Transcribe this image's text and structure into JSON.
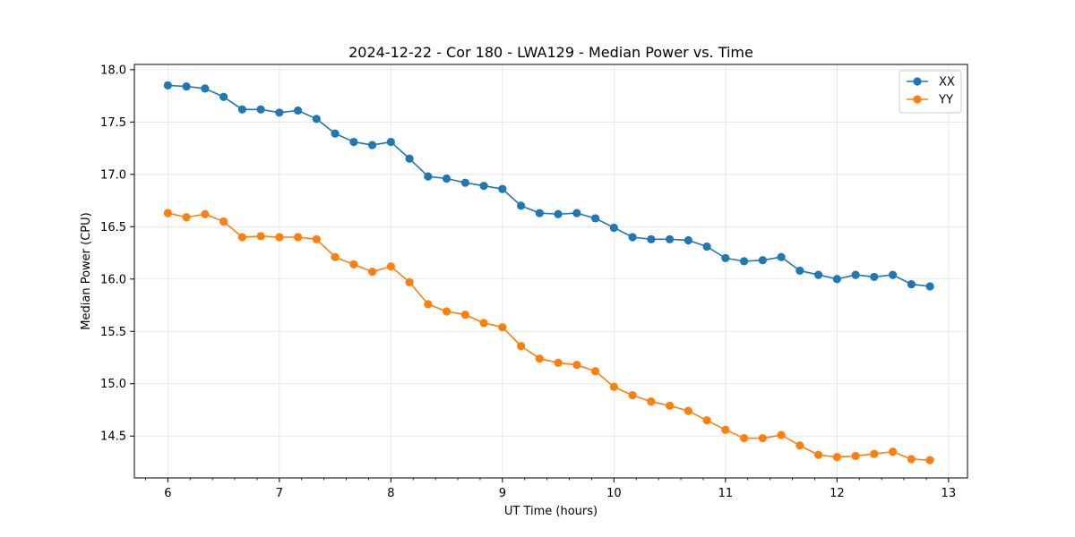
{
  "chart_data": {
    "type": "line",
    "title": "2024-12-22 - Cor 180 - LWA129 - Median Power vs. Time",
    "xlabel": "UT Time (hours)",
    "ylabel": "Median Power (CPU)",
    "xlim": [
      5.7,
      13.17
    ],
    "ylim": [
      14.1,
      18.05
    ],
    "grid": true,
    "legend_position": "top-right",
    "x_ticks": [
      6,
      7,
      8,
      9,
      10,
      11,
      12,
      13
    ],
    "x_tick_labels": [
      "6",
      "7",
      "8",
      "9",
      "10",
      "11",
      "12",
      "13"
    ],
    "y_ticks": [
      14.5,
      15.0,
      15.5,
      16.0,
      16.5,
      17.0,
      17.5,
      18.0
    ],
    "y_tick_labels": [
      "14.5",
      "15.0",
      "15.5",
      "16.0",
      "16.5",
      "17.0",
      "17.5",
      "18.0"
    ],
    "x": [
      6.0,
      6.1667,
      6.3333,
      6.5,
      6.6667,
      6.8333,
      7.0,
      7.1667,
      7.3333,
      7.5,
      7.6667,
      7.8333,
      8.0,
      8.1667,
      8.3333,
      8.5,
      8.6667,
      8.8333,
      9.0,
      9.1667,
      9.3333,
      9.5,
      9.6667,
      9.8333,
      10.0,
      10.1667,
      10.3333,
      10.5,
      10.6667,
      10.8333,
      11.0,
      11.1667,
      11.3333,
      11.5,
      11.6667,
      11.8333,
      12.0,
      12.1667,
      12.3333,
      12.5,
      12.6667,
      12.8333
    ],
    "series": [
      {
        "name": "XX",
        "color": "#1f77b4",
        "values": [
          17.85,
          17.84,
          17.82,
          17.74,
          17.62,
          17.62,
          17.59,
          17.61,
          17.53,
          17.39,
          17.31,
          17.28,
          17.31,
          17.15,
          16.98,
          16.96,
          16.92,
          16.89,
          16.86,
          16.7,
          16.63,
          16.62,
          16.63,
          16.58,
          16.49,
          16.4,
          16.38,
          16.38,
          16.37,
          16.31,
          16.2,
          16.17,
          16.18,
          16.21,
          16.08,
          16.04,
          16.0,
          16.04,
          16.02,
          16.04,
          15.95,
          15.93
        ]
      },
      {
        "name": "YY",
        "color": "#ff7f0e",
        "values": [
          16.63,
          16.59,
          16.62,
          16.55,
          16.4,
          16.41,
          16.4,
          16.4,
          16.38,
          16.21,
          16.14,
          16.07,
          16.12,
          15.97,
          15.76,
          15.69,
          15.66,
          15.58,
          15.54,
          15.36,
          15.24,
          15.2,
          15.18,
          15.12,
          14.97,
          14.89,
          14.83,
          14.79,
          14.74,
          14.65,
          14.56,
          14.48,
          14.48,
          14.51,
          14.41,
          14.32,
          14.3,
          14.31,
          14.33,
          14.35,
          14.28,
          14.27
        ]
      }
    ]
  }
}
